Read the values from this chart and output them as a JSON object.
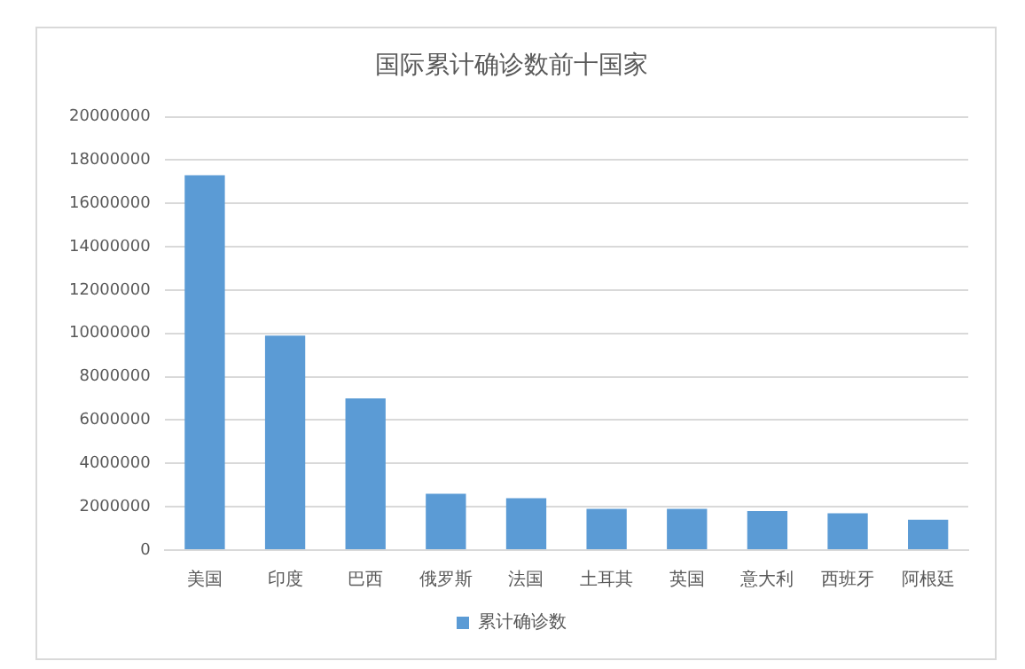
{
  "chart_data": {
    "type": "bar",
    "title": "国际累计确诊数前十国家",
    "categories": [
      "美国",
      "印度",
      "巴西",
      "俄罗斯",
      "法国",
      "土耳其",
      "英国",
      "意大利",
      "西班牙",
      "阿根廷"
    ],
    "series": [
      {
        "name": "累计确诊数",
        "color": "#5b9bd5",
        "values": [
          17300000,
          9900000,
          7000000,
          2600000,
          2400000,
          1900000,
          1900000,
          1800000,
          1700000,
          1400000
        ]
      }
    ],
    "ylim": [
      0,
      20000000
    ],
    "yticks": [
      0,
      2000000,
      4000000,
      6000000,
      8000000,
      10000000,
      12000000,
      14000000,
      16000000,
      18000000,
      20000000
    ],
    "grid": "y",
    "legend": "bottom"
  }
}
